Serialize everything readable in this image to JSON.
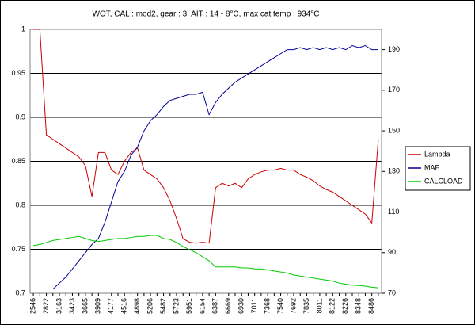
{
  "chart_data": {
    "type": "line",
    "title": "WOT, CAL : mod2, gear : 3, AIT : 14 - 8°C, max cat temp : 934°C",
    "categories": [
      "2546",
      null,
      "2822",
      null,
      "3163",
      null,
      "3423",
      null,
      "3665",
      null,
      "3909",
      null,
      "4177",
      null,
      "4516",
      null,
      "4898",
      null,
      "5206",
      null,
      "5482",
      null,
      "5723",
      null,
      "5951",
      null,
      "6154",
      null,
      "6387",
      null,
      "6669",
      null,
      "6930",
      null,
      "7011",
      null,
      "7368",
      null,
      "7540",
      null,
      "7692",
      null,
      "7835",
      null,
      "8011",
      null,
      "8122",
      null,
      "8226",
      null,
      "8348",
      null,
      "8486",
      null
    ],
    "series": [
      {
        "name": "Lambda",
        "color": "#cc0000",
        "values": [
          1,
          1,
          0.88,
          0.875,
          0.87,
          0.865,
          0.86,
          0.855,
          0.845,
          0.81,
          0.86,
          0.86,
          0.84,
          0.835,
          0.85,
          0.86,
          0.865,
          0.84,
          0.835,
          0.83,
          0.82,
          0.805,
          0.785,
          0.762,
          0.758,
          0.757,
          0.758,
          0.757,
          0.82,
          0.825,
          0.822,
          0.825,
          0.82,
          0.83,
          0.835,
          0.838,
          0.84,
          0.84,
          0.842,
          0.84,
          0.84,
          0.835,
          0.832,
          0.828,
          0.822,
          0.818,
          0.815,
          0.81,
          0.805,
          0.8,
          0.795,
          0.79,
          0.78,
          0.875
        ]
      },
      {
        "name": "MAF",
        "color": "#000099",
        "axis": "y2",
        "values": [
          null,
          null,
          null,
          72,
          75,
          78,
          82,
          86,
          90,
          94,
          97,
          105,
          115,
          125,
          130,
          138,
          142,
          150,
          155,
          158,
          162,
          165,
          166,
          167,
          168,
          168,
          169,
          158,
          164,
          168,
          171,
          174,
          176,
          178,
          180,
          182,
          184,
          186,
          188,
          190,
          190,
          191,
          190,
          191,
          190,
          191,
          190,
          191,
          190,
          192,
          191,
          192,
          190,
          190
        ]
      },
      {
        "name": "CALCLOAD",
        "color": "#00cc00",
        "axis": "y2",
        "values": [
          93.5,
          94,
          95,
          96,
          96.5,
          97,
          97.5,
          98,
          97,
          96,
          95.5,
          96,
          96.5,
          97,
          97,
          97.5,
          98,
          98,
          98.5,
          98.5,
          97,
          96.5,
          95,
          93,
          91.5,
          90,
          88,
          86,
          83,
          83,
          83,
          83,
          82.5,
          82.5,
          82,
          82,
          81.5,
          81,
          80.5,
          80,
          79,
          78.5,
          78,
          77.5,
          77,
          76.5,
          76,
          75,
          74.5,
          74,
          73.8,
          73.5,
          73,
          72.7
        ]
      }
    ],
    "ylim": [
      0.7,
      1
    ],
    "yticks": [
      0.7,
      0.75,
      0.8,
      0.85,
      0.9,
      0.95,
      1
    ],
    "y2lim": [
      70,
      200
    ],
    "y2ticks": [
      70,
      90,
      110,
      130,
      150,
      170,
      190
    ],
    "grid": true,
    "legend": "right"
  }
}
